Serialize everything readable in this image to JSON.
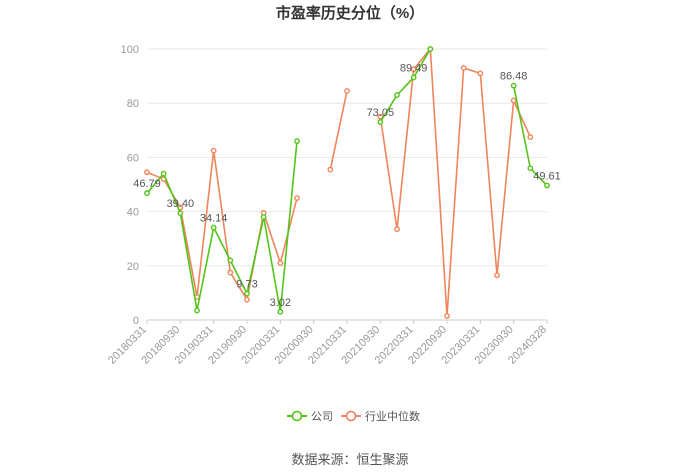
{
  "title": "市盈率历史分位（%）",
  "source": "数据来源：恒生聚源",
  "chart_data": {
    "type": "line",
    "title": "市盈率历史分位（%）",
    "xlabel": "",
    "ylabel": "",
    "ylim": [
      0,
      100
    ],
    "yticks": [
      0,
      20,
      40,
      60,
      80,
      100
    ],
    "grid": true,
    "legend_position": "bottom",
    "x": [
      "20180331",
      "20180630",
      "20180930",
      "20181231",
      "20190331",
      "20190630",
      "20190930",
      "20191231",
      "20200331",
      "20200630",
      "20200930",
      "20201231",
      "20210331",
      "20210630",
      "20210930",
      "20211231",
      "20220331",
      "20220630",
      "20220930",
      "20221231",
      "20230331",
      "20230630",
      "20230930",
      "20231231",
      "20240328"
    ],
    "x_tick_labels": [
      "20180331",
      "20180930",
      "20190331",
      "20190930",
      "20200331",
      "20200930",
      "20210331",
      "20210930",
      "20220331",
      "20220930",
      "20230331",
      "20230930",
      "20240328"
    ],
    "series": [
      {
        "name": "公司",
        "color": "#52c41a",
        "values": [
          46.79,
          54,
          39.4,
          3.5,
          34.14,
          22,
          9.73,
          38,
          3.02,
          66,
          null,
          null,
          null,
          null,
          73.05,
          83,
          89.49,
          100,
          null,
          null,
          null,
          null,
          86.48,
          56,
          49.61
        ],
        "labels": [
          {
            "index": 0,
            "text": "46.79"
          },
          {
            "index": 2,
            "text": "39.40"
          },
          {
            "index": 4,
            "text": "34.14"
          },
          {
            "index": 6,
            "text": "9.73"
          },
          {
            "index": 8,
            "text": "3.02"
          },
          {
            "index": 14,
            "text": "73.05"
          },
          {
            "index": 16,
            "text": "89.49"
          },
          {
            "index": 22,
            "text": "86.48"
          },
          {
            "index": 24,
            "text": "49.61"
          }
        ]
      },
      {
        "name": "行业中位数",
        "color": "#f0845a",
        "values": [
          54.5,
          52,
          41.5,
          8.5,
          62.5,
          17.5,
          7.5,
          39.5,
          21,
          45,
          null,
          55.5,
          84.5,
          null,
          75,
          33.5,
          92.5,
          100,
          1.5,
          93,
          91,
          16.5,
          81,
          67.5,
          null
        ]
      }
    ]
  }
}
